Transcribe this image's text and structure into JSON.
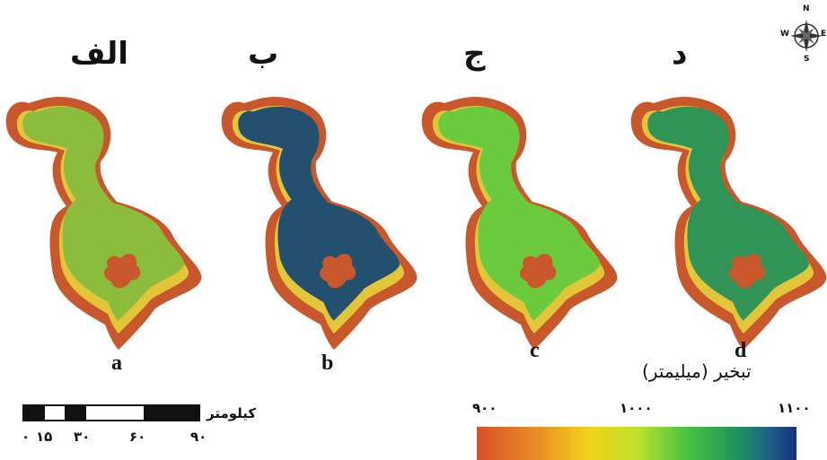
{
  "panels": [
    {
      "title": "الف",
      "letter": "a",
      "fill": "#8cbc3c",
      "inner": "#6fae4a"
    },
    {
      "title": "ب",
      "letter": "b",
      "fill": "#23506f",
      "inner": "#2b6a72"
    },
    {
      "title": "ج",
      "letter": "c",
      "fill": "#6ccb3c",
      "inner": "#5ab84a"
    },
    {
      "title": "د",
      "letter": "d",
      "fill": "#2f9455",
      "inner": "#2a8a5a"
    }
  ],
  "colors": {
    "shore": "#c9572c",
    "rim": "#e3c53a",
    "island": "#c9572c"
  },
  "scale_bar": {
    "unit": "کیلومتر",
    "ticks": [
      "۰",
      "۱۵",
      "۳۰",
      "۶۰",
      "۹۰"
    ]
  },
  "legend": {
    "title": "تبخیر (میلیمتر)",
    "ticks": [
      "۹۰۰",
      "۱۰۰۰",
      "۱۱۰۰"
    ]
  },
  "north_arrow": {
    "n": "N",
    "s": "S",
    "e": "E",
    "w": "W"
  }
}
